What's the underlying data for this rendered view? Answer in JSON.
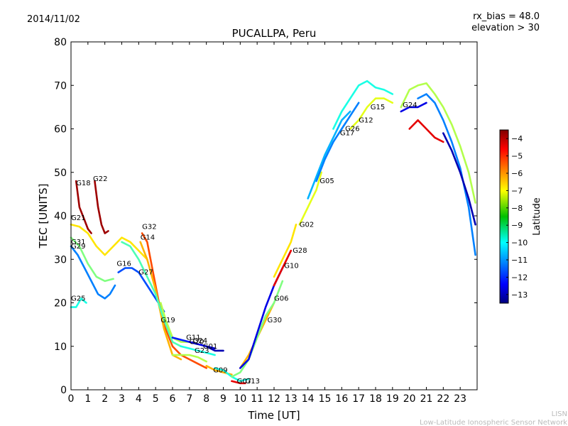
{
  "header": {
    "date": "2014/11/02",
    "title": "PUCALLPA, Peru",
    "rx_bias": "rx_bias = 48.0",
    "elevation": "elevation > 30"
  },
  "credit": {
    "short": "LISN",
    "full": "Low-Latitude Ionospheric Sensor Network"
  },
  "chart_data": {
    "type": "scatter",
    "title": "PUCALLPA, Peru",
    "xlabel": "Time [UT]",
    "ylabel": "TEC [UNITS]",
    "xlim": [
      0,
      24
    ],
    "ylim": [
      0,
      80
    ],
    "xticks": [
      0,
      1,
      2,
      3,
      4,
      5,
      6,
      7,
      8,
      9,
      10,
      11,
      12,
      13,
      14,
      15,
      16,
      17,
      18,
      19,
      20,
      21,
      22,
      23
    ],
    "yticks": [
      0,
      10,
      20,
      30,
      40,
      50,
      60,
      70,
      80
    ],
    "grid": false,
    "colorbar": {
      "label": "Latitude",
      "range": [
        -13.5,
        -3.5
      ],
      "ticks": [
        -4,
        -5,
        -6,
        -7,
        -8,
        -9,
        -10,
        -11,
        -12,
        -13
      ],
      "colormap": "jet"
    },
    "series": [
      {
        "name": "G18",
        "lat": -3.8,
        "points": [
          [
            0.3,
            48
          ],
          [
            0.5,
            42
          ],
          [
            0.8,
            39
          ],
          [
            1.0,
            37
          ],
          [
            1.2,
            36
          ]
        ]
      },
      {
        "name": "G22",
        "lat": -3.8,
        "points": [
          [
            1.4,
            48
          ],
          [
            1.6,
            42
          ],
          [
            1.8,
            38
          ],
          [
            2.0,
            36
          ],
          [
            2.2,
            36.5
          ]
        ]
      },
      {
        "name": "G31",
        "lat": -11.0,
        "points": [
          [
            0.0,
            33
          ],
          [
            0.4,
            31
          ],
          [
            0.8,
            28
          ],
          [
            1.2,
            25
          ],
          [
            1.6,
            22
          ],
          [
            2.0,
            21
          ],
          [
            2.3,
            22
          ],
          [
            2.6,
            24
          ]
        ]
      },
      {
        "name": "G29",
        "lat": -8.5,
        "points": [
          [
            0.0,
            35
          ],
          [
            0.5,
            33
          ],
          [
            1.0,
            29
          ],
          [
            1.5,
            26
          ],
          [
            2.0,
            25
          ],
          [
            2.5,
            25.5
          ]
        ]
      },
      {
        "name": "G21",
        "lat": -7.0,
        "points": [
          [
            0.0,
            38
          ],
          [
            0.5,
            37.5
          ],
          [
            1.0,
            36
          ],
          [
            1.5,
            33
          ],
          [
            2.0,
            31
          ],
          [
            2.5,
            33
          ],
          [
            3.0,
            35
          ],
          [
            3.5,
            34
          ],
          [
            4.0,
            32
          ],
          [
            4.5,
            30
          ]
        ]
      },
      {
        "name": "G25",
        "lat": -9.5,
        "points": [
          [
            0.0,
            19
          ],
          [
            0.3,
            19
          ],
          [
            0.6,
            21
          ],
          [
            0.9,
            20
          ]
        ]
      },
      {
        "name": "G16",
        "lat": -11.5,
        "points": [
          [
            2.8,
            27
          ],
          [
            3.2,
            28
          ],
          [
            3.6,
            28
          ],
          [
            4.0,
            27
          ],
          [
            4.5,
            24
          ],
          [
            5.0,
            21
          ],
          [
            5.5,
            18
          ]
        ]
      },
      {
        "name": "G32",
        "lat": -5.5,
        "points": [
          [
            4.2,
            36
          ],
          [
            4.5,
            34
          ],
          [
            4.8,
            28
          ],
          [
            5.2,
            20
          ],
          [
            5.6,
            14
          ],
          [
            6.0,
            10
          ],
          [
            6.5,
            8
          ],
          [
            7.0,
            7
          ],
          [
            7.5,
            6
          ],
          [
            8.0,
            5
          ]
        ]
      },
      {
        "name": "G14",
        "lat": -6.5,
        "points": [
          [
            4.1,
            34
          ],
          [
            4.5,
            30
          ],
          [
            5.0,
            23
          ],
          [
            5.5,
            14
          ],
          [
            6.0,
            8
          ],
          [
            6.5,
            7
          ]
        ]
      },
      {
        "name": "G27",
        "lat": -9.0,
        "points": [
          [
            3.0,
            34
          ],
          [
            3.5,
            33
          ],
          [
            4.0,
            30
          ],
          [
            4.5,
            26
          ],
          [
            5.0,
            22
          ],
          [
            5.5,
            16
          ],
          [
            6.0,
            11
          ],
          [
            6.5,
            10
          ]
        ]
      },
      {
        "name": "G19",
        "lat": -8.0,
        "points": [
          [
            5.3,
            20
          ],
          [
            5.6,
            16
          ],
          [
            6.0,
            12
          ],
          [
            6.5,
            11
          ],
          [
            7.0,
            11
          ]
        ]
      },
      {
        "name": "G11",
        "lat": -12.0,
        "points": [
          [
            6.0,
            12
          ],
          [
            6.5,
            11.5
          ],
          [
            7.0,
            11
          ],
          [
            7.5,
            10.5
          ]
        ]
      },
      {
        "name": "G24",
        "lat": -12.5,
        "points": [
          [
            7.0,
            11
          ],
          [
            7.5,
            10.5
          ],
          [
            8.0,
            10
          ],
          [
            8.5,
            9.5
          ]
        ]
      },
      {
        "name": "G20",
        "lat": -9.5,
        "points": [
          [
            6.5,
            10
          ],
          [
            7.0,
            9.5
          ],
          [
            7.5,
            9
          ],
          [
            8.0,
            8.5
          ],
          [
            8.5,
            8
          ]
        ]
      },
      {
        "name": "G01",
        "lat": -13.0,
        "points": [
          [
            8.0,
            10
          ],
          [
            8.5,
            9
          ],
          [
            9.0,
            9
          ]
        ]
      },
      {
        "name": "G23",
        "lat": -8.0,
        "points": [
          [
            6.0,
            8
          ],
          [
            6.5,
            8
          ],
          [
            7.0,
            8
          ],
          [
            7.5,
            7.5
          ],
          [
            8.0,
            6.5
          ]
        ]
      },
      {
        "name": "G09",
        "lat": -6.5,
        "points": [
          [
            8.0,
            5.5
          ],
          [
            8.5,
            4.5
          ],
          [
            9.0,
            4
          ],
          [
            9.5,
            3.5
          ]
        ]
      },
      {
        "name": "G07",
        "lat": -9.5,
        "points": [
          [
            8.5,
            5
          ],
          [
            9.0,
            4.5
          ],
          [
            9.5,
            3
          ],
          [
            10.0,
            2
          ],
          [
            10.5,
            2.5
          ]
        ]
      },
      {
        "name": "G13",
        "lat": -4.5,
        "points": [
          [
            9.5,
            2
          ],
          [
            10.0,
            1.5
          ],
          [
            10.3,
            1.5
          ]
        ]
      },
      {
        "name": "G30",
        "lat": -6.5,
        "points": [
          [
            10.0,
            5
          ],
          [
            10.5,
            8
          ],
          [
            11.0,
            12
          ],
          [
            11.5,
            16
          ],
          [
            12.0,
            20
          ]
        ]
      },
      {
        "name": "G06",
        "lat": -8.5,
        "points": [
          [
            9.5,
            3
          ],
          [
            10.0,
            4
          ],
          [
            10.5,
            7
          ],
          [
            11.0,
            12
          ],
          [
            11.5,
            17
          ],
          [
            12.0,
            20
          ],
          [
            12.5,
            25
          ]
        ]
      },
      {
        "name": "G10",
        "lat": -12.5,
        "points": [
          [
            10.0,
            5
          ],
          [
            10.5,
            7
          ],
          [
            11.0,
            13
          ],
          [
            11.5,
            19
          ],
          [
            12.0,
            24
          ],
          [
            12.5,
            28
          ]
        ]
      },
      {
        "name": "G28",
        "lat": -4.5,
        "points": [
          [
            12.0,
            24
          ],
          [
            12.5,
            28
          ],
          [
            13.0,
            32
          ]
        ]
      },
      {
        "name": "G02",
        "lat": -7.0,
        "points": [
          [
            12.0,
            26
          ],
          [
            12.5,
            30
          ],
          [
            13.0,
            34
          ],
          [
            13.3,
            38
          ]
        ]
      },
      {
        "name": "G05",
        "lat": -7.5,
        "points": [
          [
            13.5,
            38
          ],
          [
            14.0,
            42
          ],
          [
            14.5,
            46
          ],
          [
            14.8,
            50
          ]
        ]
      },
      {
        "name": "G17",
        "lat": -10.5,
        "points": [
          [
            14.0,
            44
          ],
          [
            14.5,
            49
          ],
          [
            15.0,
            54
          ],
          [
            15.5,
            58
          ],
          [
            16.0,
            62
          ],
          [
            16.5,
            64
          ]
        ]
      },
      {
        "name": "G26",
        "lat": -11.0,
        "points": [
          [
            14.5,
            48
          ],
          [
            15.0,
            53
          ],
          [
            15.5,
            57
          ],
          [
            16.0,
            60
          ],
          [
            16.5,
            63
          ],
          [
            17.0,
            66
          ]
        ]
      },
      {
        "name": "G12",
        "lat": -7.5,
        "points": [
          [
            16.5,
            60
          ],
          [
            17.0,
            62
          ],
          [
            17.5,
            65
          ],
          [
            18.0,
            67
          ],
          [
            18.5,
            67
          ],
          [
            19.0,
            66
          ]
        ]
      },
      {
        "name": "G15",
        "lat": -9.5,
        "points": [
          [
            15.5,
            60
          ],
          [
            16.0,
            64
          ],
          [
            16.5,
            67
          ],
          [
            17.0,
            70
          ],
          [
            17.5,
            71
          ],
          [
            18.0,
            69.5
          ],
          [
            18.5,
            69
          ],
          [
            19.0,
            68
          ]
        ]
      },
      {
        "name": "G24b",
        "lat": -12.5,
        "points": [
          [
            19.5,
            64
          ],
          [
            20.0,
            65
          ],
          [
            20.5,
            65
          ],
          [
            21.0,
            66
          ]
        ]
      },
      {
        "name": "",
        "lat": -4.5,
        "points": [
          [
            20.0,
            60
          ],
          [
            20.5,
            62
          ],
          [
            21.0,
            60
          ],
          [
            21.5,
            58
          ],
          [
            22.0,
            57
          ]
        ]
      },
      {
        "name": "",
        "lat": -8.0,
        "points": [
          [
            19.5,
            65
          ],
          [
            20.0,
            69
          ],
          [
            20.5,
            70
          ],
          [
            21.0,
            70.5
          ],
          [
            21.5,
            68
          ],
          [
            22.0,
            65
          ],
          [
            22.5,
            61
          ],
          [
            23.0,
            56
          ],
          [
            23.5,
            50
          ],
          [
            23.9,
            43
          ]
        ]
      },
      {
        "name": "",
        "lat": -11.0,
        "points": [
          [
            20.5,
            67
          ],
          [
            21.0,
            68
          ],
          [
            21.5,
            66
          ],
          [
            22.0,
            62
          ],
          [
            22.5,
            57
          ],
          [
            23.0,
            51
          ],
          [
            23.5,
            42
          ],
          [
            23.9,
            31
          ]
        ]
      },
      {
        "name": "",
        "lat": -13.0,
        "points": [
          [
            22.0,
            59
          ],
          [
            22.5,
            55
          ],
          [
            23.0,
            50
          ],
          [
            23.5,
            44
          ],
          [
            23.9,
            38
          ]
        ]
      }
    ],
    "labels": [
      {
        "text": "G18",
        "x": 0.3,
        "y": 47
      },
      {
        "text": "G22",
        "x": 1.3,
        "y": 48
      },
      {
        "text": "G21",
        "x": 0.0,
        "y": 39
      },
      {
        "text": "G31",
        "x": 0.0,
        "y": 33.5
      },
      {
        "text": "G29",
        "x": 0.0,
        "y": 32.5
      },
      {
        "text": "G25",
        "x": 0.0,
        "y": 20.5
      },
      {
        "text": "G16",
        "x": 2.7,
        "y": 28.5
      },
      {
        "text": "G32",
        "x": 4.2,
        "y": 37
      },
      {
        "text": "G14",
        "x": 4.1,
        "y": 34.5
      },
      {
        "text": "G27",
        "x": 4.0,
        "y": 26.5
      },
      {
        "text": "G19",
        "x": 5.3,
        "y": 15.5
      },
      {
        "text": "G11",
        "x": 6.8,
        "y": 11.5
      },
      {
        "text": "G20",
        "x": 7.0,
        "y": 10.5
      },
      {
        "text": "G24",
        "x": 7.2,
        "y": 10.8
      },
      {
        "text": "G01",
        "x": 7.8,
        "y": 9.5
      },
      {
        "text": "G23",
        "x": 7.3,
        "y": 8.5
      },
      {
        "text": "G09",
        "x": 8.4,
        "y": 4
      },
      {
        "text": "G07",
        "x": 9.8,
        "y": 1.5
      },
      {
        "text": "G13",
        "x": 10.3,
        "y": 1.5
      },
      {
        "text": "G30",
        "x": 11.6,
        "y": 15.5
      },
      {
        "text": "G06",
        "x": 12.0,
        "y": 20.5
      },
      {
        "text": "G10",
        "x": 12.6,
        "y": 28
      },
      {
        "text": "G28",
        "x": 13.1,
        "y": 31.5
      },
      {
        "text": "G02",
        "x": 13.5,
        "y": 37.5
      },
      {
        "text": "G05",
        "x": 14.7,
        "y": 47.5
      },
      {
        "text": "G17",
        "x": 15.9,
        "y": 58.5
      },
      {
        "text": "G26",
        "x": 16.2,
        "y": 59.5
      },
      {
        "text": "G12",
        "x": 17.0,
        "y": 61.5
      },
      {
        "text": "G15",
        "x": 17.7,
        "y": 64.5
      },
      {
        "text": "G24",
        "x": 19.6,
        "y": 65
      }
    ]
  }
}
